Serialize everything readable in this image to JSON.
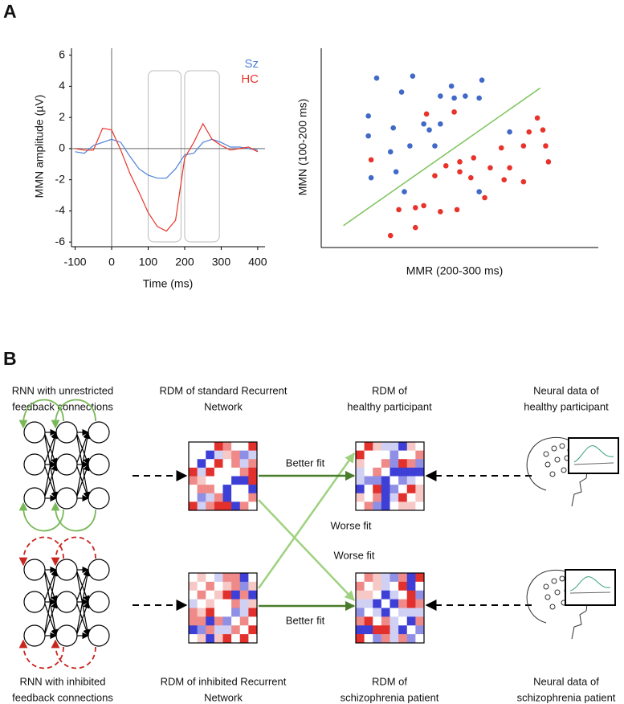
{
  "panel_labels": [
    "A",
    "B"
  ],
  "chart_data": [
    {
      "type": "line",
      "xlabel": "Time (ms)",
      "ylabel": "MMN amplitude (µV)",
      "x": [
        -100,
        -75,
        -50,
        -25,
        0,
        25,
        50,
        75,
        100,
        125,
        150,
        175,
        200,
        225,
        250,
        275,
        300,
        325,
        350,
        375,
        400
      ],
      "series": [
        {
          "name": "Sz",
          "color": "#4f82d6",
          "values": [
            -0.2,
            -0.3,
            0.2,
            0.4,
            0.6,
            0.4,
            -0.5,
            -1.3,
            -1.7,
            -1.9,
            -1.9,
            -1.3,
            -0.4,
            -0.3,
            0.4,
            0.6,
            0.4,
            0.1,
            0.1,
            0.0,
            -0.1
          ]
        },
        {
          "name": "HC",
          "color": "#e8352b",
          "values": [
            0.0,
            -0.1,
            -0.1,
            1.3,
            1.2,
            -0.1,
            -1.6,
            -2.8,
            -4.1,
            -5.0,
            -5.3,
            -4.6,
            -0.6,
            0.4,
            1.6,
            0.6,
            0.2,
            -0.1,
            0.0,
            0.1,
            -0.2
          ]
        }
      ],
      "highlight_windows": [
        [
          100,
          190
        ],
        [
          200,
          295
        ]
      ],
      "xlim": [
        -110,
        420
      ],
      "xticks": [
        -100,
        0,
        100,
        200,
        300,
        400
      ],
      "ylim": [
        -6.3,
        6.6
      ],
      "yticks": [
        -6,
        -4,
        -2,
        0,
        2,
        4,
        6
      ]
    },
    {
      "type": "scatter",
      "xlabel": "MMR (200-300 ms)",
      "ylabel": "MMN (100-200 ms)",
      "xlim": [
        0,
        100
      ],
      "ylim": [
        0,
        100
      ],
      "series": [
        {
          "color": "#4169c8",
          "x": [
            20,
            33,
            47,
            58,
            29,
            43,
            48,
            52,
            57,
            17,
            26,
            37,
            39,
            43,
            32,
            41,
            17,
            25,
            27,
            18,
            30,
            57,
            68
          ],
          "values": [
            85,
            86,
            81,
            84,
            78,
            76,
            75,
            76,
            75,
            66,
            60,
            62,
            59,
            62,
            51,
            51,
            56,
            48,
            38,
            35,
            28,
            28,
            58
          ]
        },
        {
          "color": "#e8332a",
          "x": [
            38,
            48,
            18,
            78,
            80,
            75,
            81,
            73,
            65,
            55,
            50,
            45,
            61,
            68,
            82,
            41,
            50,
            54,
            73,
            59,
            37,
            28,
            34,
            43,
            49,
            25,
            34,
            66
          ],
          "values": [
            67,
            68,
            44,
            65,
            59,
            58,
            51,
            51,
            50,
            45,
            43,
            41,
            40,
            40,
            43,
            36,
            38,
            35,
            33,
            25,
            21,
            19,
            20,
            18,
            19,
            6,
            10,
            34
          ]
        }
      ],
      "fit_line": {
        "color": "#7cc35a",
        "x": [
          8,
          79
        ],
        "values": [
          11,
          80
        ]
      }
    }
  ],
  "diagram": {
    "top_captions": [
      [
        "RNN with unrestricted",
        "feedback connections"
      ],
      [
        "RDM of standard Recurrent",
        "Network"
      ],
      [
        "RDM of",
        "healthy participant"
      ],
      [
        "Neural data of",
        "healthy participant"
      ]
    ],
    "bottom_captions": [
      [
        "RNN with inhibited",
        "feedback connections"
      ],
      [
        "RDM of inhibited Recurrent",
        "Network"
      ],
      [
        "RDM of",
        "schizophrenia patient"
      ],
      [
        "Neural data of",
        "schizophrenia patient"
      ]
    ],
    "edge_labels": [
      "Better fit",
      "Worse fit",
      "Worse fit",
      "Better fit"
    ]
  }
}
